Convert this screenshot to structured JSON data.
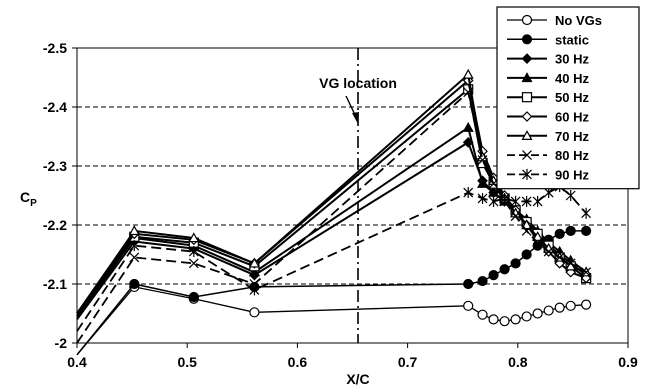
{
  "chart_data": {
    "type": "line",
    "xlabel": "X/C",
    "ylabel": "Cp",
    "xlim": [
      0.4,
      0.9
    ],
    "ylim": [
      -2.0,
      -2.5
    ],
    "y_inverted": true,
    "x_ticks": [
      "0.4",
      "0.5",
      "0.6",
      "0.7",
      "0.8",
      "0.9"
    ],
    "y_ticks": [
      "-2",
      "-2.1",
      "-2.2",
      "-2.3",
      "-2.4",
      "-2.5"
    ],
    "grid": "horizontal dashed",
    "legend_position": "top-right",
    "annotation": {
      "text": "VG location",
      "x": 0.655
    },
    "series": [
      {
        "name": "No VGs",
        "marker": "circle-open",
        "line": "solid",
        "width": 1.3,
        "x": [
          0.4,
          0.452,
          0.506,
          0.561,
          0.755,
          0.768,
          0.778,
          0.788,
          0.798,
          0.808,
          0.818,
          0.828,
          0.838,
          0.848,
          0.862
        ],
        "y": [
          -1.98,
          -2.095,
          -2.075,
          -2.052,
          -2.063,
          -2.048,
          -2.04,
          -2.037,
          -2.04,
          -2.045,
          -2.05,
          -2.055,
          -2.06,
          -2.063,
          -2.065
        ]
      },
      {
        "name": "static",
        "marker": "circle-filled",
        "line": "solid",
        "width": 1.5,
        "x": [
          0.4,
          0.452,
          0.506,
          0.561,
          0.755,
          0.768,
          0.778,
          0.788,
          0.798,
          0.808,
          0.818,
          0.828,
          0.838,
          0.848,
          0.862
        ],
        "y": [
          -1.98,
          -2.1,
          -2.078,
          -2.095,
          -2.1,
          -2.105,
          -2.115,
          -2.125,
          -2.135,
          -2.15,
          -2.165,
          -2.175,
          -2.185,
          -2.19,
          -2.19
        ]
      },
      {
        "name": "30 Hz",
        "marker": "diamond-filled",
        "line": "solid",
        "width": 2,
        "x": [
          0.4,
          0.452,
          0.506,
          0.561,
          0.755,
          0.768,
          0.778,
          0.788,
          0.798,
          0.808,
          0.818,
          0.828,
          0.838,
          0.848,
          0.862
        ],
        "y": [
          -2.04,
          -2.172,
          -2.16,
          -2.115,
          -2.34,
          -2.275,
          -2.255,
          -2.24,
          -2.225,
          -2.205,
          -2.185,
          -2.165,
          -2.15,
          -2.135,
          -2.115
        ]
      },
      {
        "name": "40 Hz",
        "marker": "triangle-filled",
        "line": "solid",
        "width": 2,
        "x": [
          0.4,
          0.452,
          0.506,
          0.561,
          0.755,
          0.768,
          0.778,
          0.788,
          0.798,
          0.808,
          0.818,
          0.828,
          0.838,
          0.848,
          0.862
        ],
        "y": [
          -2.045,
          -2.178,
          -2.165,
          -2.12,
          -2.365,
          -2.27,
          -2.255,
          -2.24,
          -2.225,
          -2.21,
          -2.19,
          -2.17,
          -2.155,
          -2.14,
          -2.12
        ]
      },
      {
        "name": "50 Hz",
        "marker": "square-open",
        "line": "solid",
        "width": 2,
        "x": [
          0.4,
          0.452,
          0.506,
          0.561,
          0.755,
          0.768,
          0.778,
          0.788,
          0.798,
          0.808,
          0.818,
          0.828,
          0.838,
          0.848,
          0.862
        ],
        "y": [
          -2.05,
          -2.18,
          -2.17,
          -2.13,
          -2.43,
          -2.305,
          -2.27,
          -2.245,
          -2.225,
          -2.205,
          -2.185,
          -2.165,
          -2.145,
          -2.13,
          -2.11
        ]
      },
      {
        "name": "60 Hz",
        "marker": "diamond-open",
        "line": "solid",
        "width": 2,
        "x": [
          0.4,
          0.452,
          0.506,
          0.561,
          0.755,
          0.768,
          0.778,
          0.788,
          0.798,
          0.808,
          0.818,
          0.828,
          0.838,
          0.848,
          0.862
        ],
        "y": [
          -2.05,
          -2.185,
          -2.175,
          -2.135,
          -2.445,
          -2.325,
          -2.28,
          -2.25,
          -2.225,
          -2.2,
          -2.175,
          -2.155,
          -2.135,
          -2.12,
          -2.11
        ]
      },
      {
        "name": "70 Hz",
        "marker": "triangle-open",
        "line": "solid",
        "width": 2,
        "x": [
          0.4,
          0.452,
          0.506,
          0.561,
          0.755,
          0.768,
          0.778,
          0.788,
          0.798,
          0.808,
          0.818,
          0.828,
          0.838,
          0.848,
          0.862
        ],
        "y": [
          -2.05,
          -2.19,
          -2.178,
          -2.135,
          -2.455,
          -2.315,
          -2.275,
          -2.245,
          -2.22,
          -2.2,
          -2.18,
          -2.16,
          -2.145,
          -2.13,
          -2.12
        ]
      },
      {
        "name": "80 Hz",
        "marker": "x",
        "line": "dashed",
        "width": 1.8,
        "x": [
          0.4,
          0.452,
          0.506,
          0.561,
          0.755,
          0.768,
          0.778,
          0.788,
          0.798,
          0.808,
          0.818,
          0.828,
          0.838,
          0.848,
          0.862
        ],
        "y": [
          -2.0,
          -2.145,
          -2.135,
          -2.1,
          -2.425,
          -2.31,
          -2.27,
          -2.24,
          -2.215,
          -2.19,
          -2.17,
          -2.155,
          -2.145,
          -2.135,
          -2.12
        ]
      },
      {
        "name": "90 Hz",
        "marker": "asterisk",
        "line": "dashed",
        "width": 1.8,
        "x": [
          0.4,
          0.452,
          0.506,
          0.561,
          0.755,
          0.768,
          0.778,
          0.788,
          0.798,
          0.808,
          0.818,
          0.828,
          0.838,
          0.848,
          0.862
        ],
        "y": [
          -2.02,
          -2.165,
          -2.155,
          -2.09,
          -2.255,
          -2.245,
          -2.24,
          -2.245,
          -2.24,
          -2.24,
          -2.24,
          -2.255,
          -2.265,
          -2.25,
          -2.22
        ]
      }
    ]
  }
}
